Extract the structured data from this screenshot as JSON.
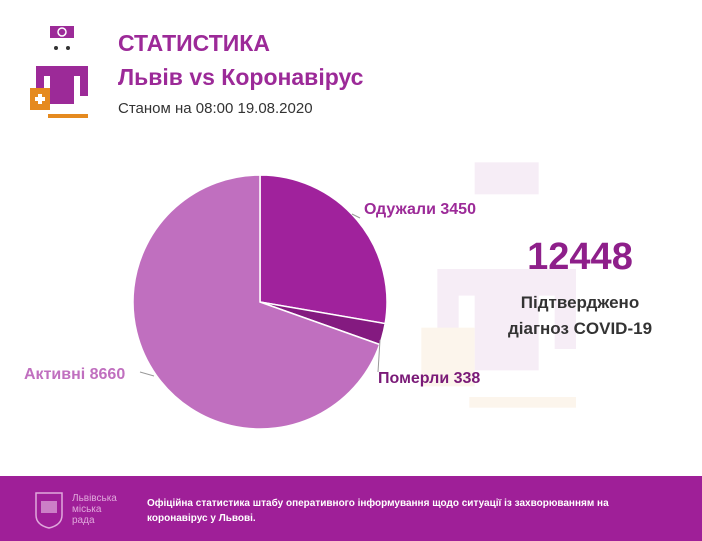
{
  "header": {
    "title": "СТАТИСТИКА",
    "subtitle": "Львів vs Коронавірус",
    "date": "Станом на 08:00 19.08.2020"
  },
  "chart_data": {
    "type": "pie",
    "slices": [
      {
        "label": "Одужали",
        "value": 3450,
        "text": "Одужали 3450",
        "color": "#a0229c"
      },
      {
        "label": "Померли",
        "value": 338,
        "text": "Померли 338",
        "color": "#841a80"
      },
      {
        "label": "Активні",
        "value": 8660,
        "text": "Активні 8660",
        "color": "#c06fbf"
      }
    ]
  },
  "total": {
    "value": "12448",
    "label_line1": "Підтверджено",
    "label_line2": "діагноз COVID-19"
  },
  "footer": {
    "council": [
      "Львівська",
      "міська",
      "рада"
    ],
    "text": "Офіційна статистика штабу оперативного інформування щодо ситуації із захворюванням на коронавірус у Львові."
  },
  "colors": {
    "accent": "#9c2a98",
    "footer_bg": "#9f1f98",
    "orange": "#e58a1f"
  }
}
